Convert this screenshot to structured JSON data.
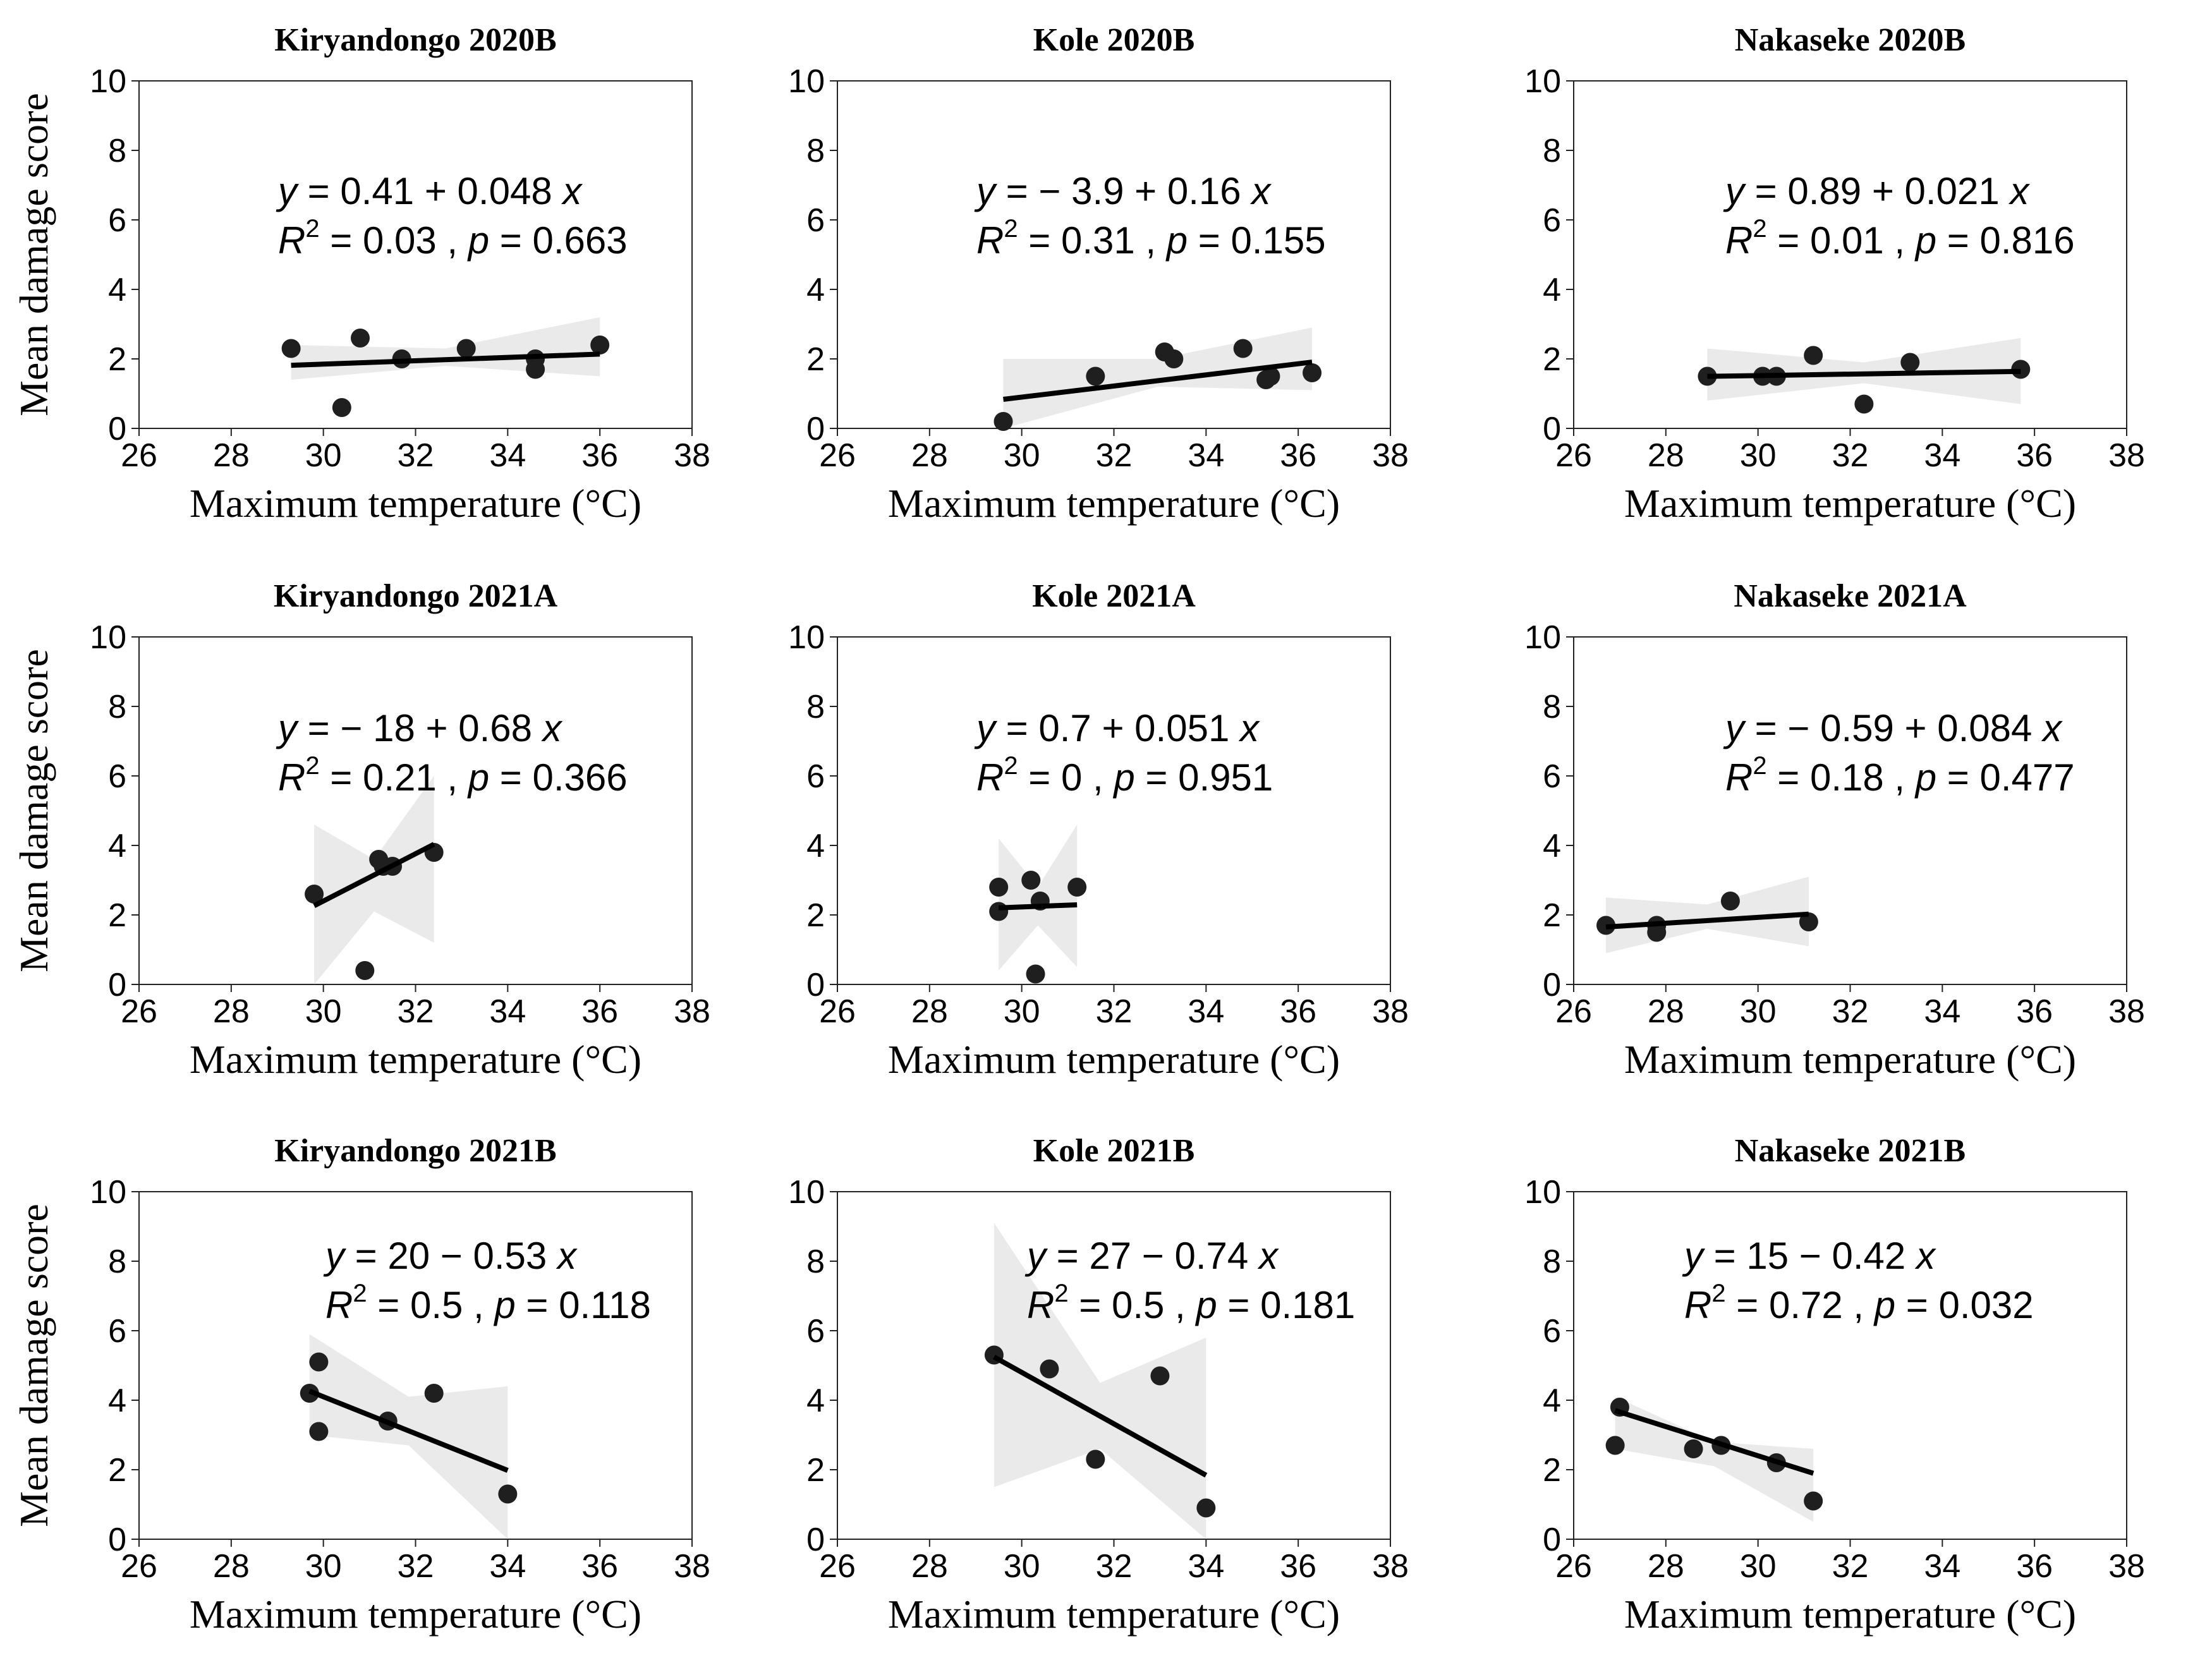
{
  "figure": {
    "ylabel": "Mean damage score",
    "xlabel": "Maximum temperature (°C)"
  },
  "chart_data": [
    {
      "type": "scatter",
      "title": "Kiryandongo 2020B",
      "xlabel": "Maximum temperature (°C)",
      "ylabel": "Mean damage score",
      "xlim": [
        26,
        38
      ],
      "ylim": [
        0,
        10
      ],
      "xticks": [
        26,
        28,
        30,
        32,
        34,
        36,
        38
      ],
      "yticks": [
        0,
        2,
        4,
        6,
        8,
        10
      ],
      "points": [
        [
          29.3,
          2.3
        ],
        [
          30.4,
          0.6
        ],
        [
          30.8,
          2.6
        ],
        [
          31.7,
          2.0
        ],
        [
          33.1,
          2.3
        ],
        [
          34.6,
          2.0
        ],
        [
          34.6,
          1.7
        ],
        [
          36.0,
          2.4
        ]
      ],
      "fit": {
        "intercept": 0.41,
        "slope": 0.048,
        "x_range": [
          29.3,
          36.0
        ]
      },
      "band": {
        "lower": [
          1.4,
          1.8,
          1.5
        ],
        "upper": [
          2.4,
          2.3,
          3.2
        ]
      },
      "eq_line1": [
        "y",
        " = 0.41 + 0.048 ",
        "x"
      ],
      "eq_line2": [
        "R",
        "2",
        " = 0.03 , ",
        "p",
        " = 0.663"
      ]
    },
    {
      "type": "scatter",
      "title": "Kole 2020B",
      "xlabel": "Maximum temperature (°C)",
      "ylabel": "Mean damage score",
      "xlim": [
        26,
        38
      ],
      "ylim": [
        0,
        10
      ],
      "xticks": [
        26,
        28,
        30,
        32,
        34,
        36,
        38
      ],
      "yticks": [
        0,
        2,
        4,
        6,
        8,
        10
      ],
      "points": [
        [
          29.6,
          0.2
        ],
        [
          31.6,
          1.5
        ],
        [
          33.1,
          2.2
        ],
        [
          33.3,
          2.0
        ],
        [
          34.8,
          2.3
        ],
        [
          35.3,
          1.4
        ],
        [
          35.4,
          1.5
        ],
        [
          36.3,
          1.6
        ]
      ],
      "fit": {
        "intercept": -3.9,
        "slope": 0.16,
        "x_range": [
          29.6,
          36.3
        ]
      },
      "band": {
        "lower": [
          0.0,
          1.2,
          1.1
        ],
        "upper": [
          2.0,
          2.0,
          2.9
        ]
      },
      "eq_line1": [
        "y",
        " = − 3.9 + 0.16 ",
        "x"
      ],
      "eq_line2": [
        "R",
        "2",
        " = 0.31 , ",
        "p",
        " = 0.155"
      ]
    },
    {
      "type": "scatter",
      "title": "Nakaseke 2020B",
      "xlabel": "Maximum temperature (°C)",
      "ylabel": "Mean damage score",
      "xlim": [
        26,
        38
      ],
      "ylim": [
        0,
        10
      ],
      "xticks": [
        26,
        28,
        30,
        32,
        34,
        36,
        38
      ],
      "yticks": [
        0,
        2,
        4,
        6,
        8,
        10
      ],
      "points": [
        [
          28.9,
          1.5
        ],
        [
          30.1,
          1.5
        ],
        [
          30.4,
          1.5
        ],
        [
          31.2,
          2.1
        ],
        [
          32.3,
          0.7
        ],
        [
          33.3,
          1.9
        ],
        [
          35.7,
          1.7
        ]
      ],
      "fit": {
        "intercept": 0.89,
        "slope": 0.021,
        "x_range": [
          28.9,
          35.7
        ]
      },
      "band": {
        "lower": [
          0.8,
          1.3,
          0.7
        ],
        "upper": [
          2.3,
          1.9,
          2.6
        ]
      },
      "eq_line1": [
        "y",
        " = 0.89 + 0.021 ",
        "x"
      ],
      "eq_line2": [
        "R",
        "2",
        " = 0.01 , ",
        "p",
        " = 0.816"
      ]
    },
    {
      "type": "scatter",
      "title": "Kiryandongo 2021A",
      "xlabel": "Maximum temperature (°C)",
      "ylabel": "Mean damage score",
      "xlim": [
        26,
        38
      ],
      "ylim": [
        0,
        10
      ],
      "xticks": [
        26,
        28,
        30,
        32,
        34,
        36,
        38
      ],
      "yticks": [
        0,
        2,
        4,
        6,
        8,
        10
      ],
      "points": [
        [
          29.8,
          2.6
        ],
        [
          30.9,
          0.4
        ],
        [
          31.2,
          3.6
        ],
        [
          31.3,
          3.4
        ],
        [
          31.5,
          3.4
        ],
        [
          32.4,
          3.8
        ]
      ],
      "fit": {
        "intercept": -18,
        "slope": 0.68,
        "x_range": [
          29.8,
          32.4
        ]
      },
      "band": {
        "lower": [
          0.0,
          2.1,
          1.2
        ],
        "upper": [
          4.6,
          3.6,
          6.0
        ]
      },
      "eq_line1": [
        "y",
        " = − 18 + 0.68 ",
        "x"
      ],
      "eq_line2": [
        "R",
        "2",
        " = 0.21 , ",
        "p",
        " = 0.366"
      ]
    },
    {
      "type": "scatter",
      "title": "Kole 2021A",
      "xlabel": "Maximum temperature (°C)",
      "ylabel": "Mean damage score",
      "xlim": [
        26,
        38
      ],
      "ylim": [
        0,
        10
      ],
      "xticks": [
        26,
        28,
        30,
        32,
        34,
        36,
        38
      ],
      "yticks": [
        0,
        2,
        4,
        6,
        8,
        10
      ],
      "points": [
        [
          29.5,
          2.1
        ],
        [
          29.5,
          2.8
        ],
        [
          30.2,
          3.0
        ],
        [
          30.3,
          0.3
        ],
        [
          30.4,
          2.4
        ],
        [
          31.2,
          2.8
        ]
      ],
      "fit": {
        "intercept": 0.7,
        "slope": 0.051,
        "x_range": [
          29.5,
          31.2
        ]
      },
      "band": {
        "lower": [
          0.4,
          1.7,
          0.5
        ],
        "upper": [
          4.2,
          2.8,
          4.6
        ]
      },
      "eq_line1": [
        "y",
        " = 0.7 + 0.051 ",
        "x"
      ],
      "eq_line2": [
        "R",
        "2",
        " = 0 , ",
        "p",
        " = 0.951"
      ]
    },
    {
      "type": "scatter",
      "title": "Nakaseke 2021A",
      "xlabel": "Maximum temperature (°C)",
      "ylabel": "Mean damage score",
      "xlim": [
        26,
        38
      ],
      "ylim": [
        0,
        10
      ],
      "xticks": [
        26,
        28,
        30,
        32,
        34,
        36,
        38
      ],
      "yticks": [
        0,
        2,
        4,
        6,
        8,
        10
      ],
      "points": [
        [
          26.7,
          1.7
        ],
        [
          27.8,
          1.5
        ],
        [
          27.8,
          1.7
        ],
        [
          29.4,
          2.4
        ],
        [
          31.1,
          1.8
        ]
      ],
      "fit": {
        "intercept": -0.59,
        "slope": 0.084,
        "x_range": [
          26.7,
          31.1
        ]
      },
      "band": {
        "lower": [
          0.9,
          1.6,
          1.1
        ],
        "upper": [
          2.5,
          2.3,
          3.1
        ]
      },
      "eq_line1": [
        "y",
        " = − 0.59 + 0.084 ",
        "x"
      ],
      "eq_line2": [
        "R",
        "2",
        " = 0.18 , ",
        "p",
        " = 0.477"
      ]
    },
    {
      "type": "scatter",
      "title": "Kiryandongo 2021B",
      "xlabel": "Maximum temperature (°C)",
      "ylabel": "Mean damage score",
      "xlim": [
        26,
        38
      ],
      "ylim": [
        0,
        10
      ],
      "xticks": [
        26,
        28,
        30,
        32,
        34,
        36,
        38
      ],
      "yticks": [
        0,
        2,
        4,
        6,
        8,
        10
      ],
      "points": [
        [
          29.7,
          4.2
        ],
        [
          29.9,
          5.1
        ],
        [
          29.9,
          3.1
        ],
        [
          31.4,
          3.4
        ],
        [
          32.4,
          4.2
        ],
        [
          34.0,
          1.3
        ]
      ],
      "fit": {
        "intercept": 20,
        "slope": -0.53,
        "x_range": [
          29.7,
          34.0
        ]
      },
      "band": {
        "lower": [
          3.0,
          2.7,
          0.0
        ],
        "upper": [
          5.9,
          4.1,
          4.4
        ]
      },
      "eq_line1": [
        "y",
        " = 20 − 0.53 ",
        "x"
      ],
      "eq_line2": [
        "R",
        "2",
        " = 0.5 , ",
        "p",
        " = 0.118"
      ]
    },
    {
      "type": "scatter",
      "title": "Kole 2021B",
      "xlabel": "Maximum temperature (°C)",
      "ylabel": "Mean damage score",
      "xlim": [
        26,
        38
      ],
      "ylim": [
        0,
        10
      ],
      "xticks": [
        26,
        28,
        30,
        32,
        34,
        36,
        38
      ],
      "yticks": [
        0,
        2,
        4,
        6,
        8,
        10
      ],
      "points": [
        [
          29.4,
          5.3
        ],
        [
          30.6,
          4.9
        ],
        [
          31.6,
          2.3
        ],
        [
          33.0,
          4.7
        ],
        [
          34.0,
          0.9
        ]
      ],
      "fit": {
        "intercept": 27,
        "slope": -0.74,
        "x_range": [
          29.4,
          34.0
        ]
      },
      "band": {
        "lower": [
          1.5,
          2.6,
          0.0
        ],
        "upper": [
          9.1,
          4.5,
          5.8
        ]
      },
      "eq_line1": [
        "y",
        " = 27 − 0.74 ",
        "x"
      ],
      "eq_line2": [
        "R",
        "2",
        " = 0.5 , ",
        "p",
        " = 0.181"
      ]
    },
    {
      "type": "scatter",
      "title": "Nakaseke 2021B",
      "xlabel": "Maximum temperature (°C)",
      "ylabel": "Mean damage score",
      "xlim": [
        26,
        38
      ],
      "ylim": [
        0,
        10
      ],
      "xticks": [
        26,
        28,
        30,
        32,
        34,
        36,
        38
      ],
      "yticks": [
        0,
        2,
        4,
        6,
        8,
        10
      ],
      "points": [
        [
          26.9,
          2.7
        ],
        [
          27.0,
          3.8
        ],
        [
          28.6,
          2.6
        ],
        [
          29.2,
          2.7
        ],
        [
          30.4,
          2.2
        ],
        [
          31.2,
          1.1
        ]
      ],
      "fit": {
        "intercept": 15,
        "slope": -0.42,
        "x_range": [
          26.9,
          31.2
        ]
      },
      "band": {
        "lower": [
          2.6,
          2.1,
          0.5
        ],
        "upper": [
          4.1,
          2.8,
          2.6
        ]
      },
      "eq_line1": [
        "y",
        " = 15 − 0.42 ",
        "x"
      ],
      "eq_line2": [
        "R",
        "2",
        " = 0.72 , ",
        "p",
        " = 0.032"
      ]
    }
  ]
}
